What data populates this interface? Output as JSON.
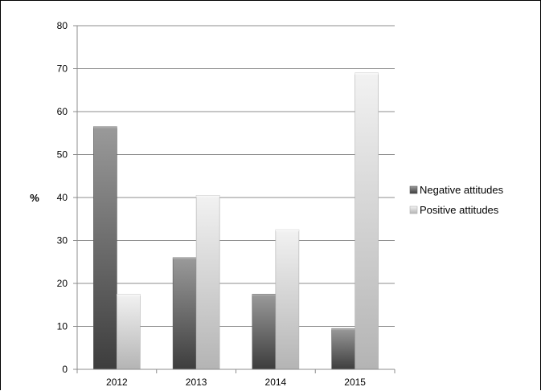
{
  "chart_data": {
    "type": "bar",
    "title": "",
    "xlabel": "",
    "ylabel": "%",
    "categories": [
      "2012",
      "2013",
      "2014",
      "2015"
    ],
    "series": [
      {
        "name": "Negative attitudes",
        "values": [
          56.5,
          26,
          17.5,
          9.5
        ]
      },
      {
        "name": "Positive attitudes",
        "values": [
          17.5,
          40.5,
          32.5,
          69
        ]
      }
    ],
    "ylim": [
      0,
      80
    ],
    "yticks": [
      0,
      10,
      20,
      30,
      40,
      50,
      60,
      70,
      80
    ],
    "grid": true,
    "legend": "right"
  },
  "colors": {
    "negative": "#6e6e6e",
    "positive": "#d9d9d9",
    "grid": "#8c8c8c"
  }
}
